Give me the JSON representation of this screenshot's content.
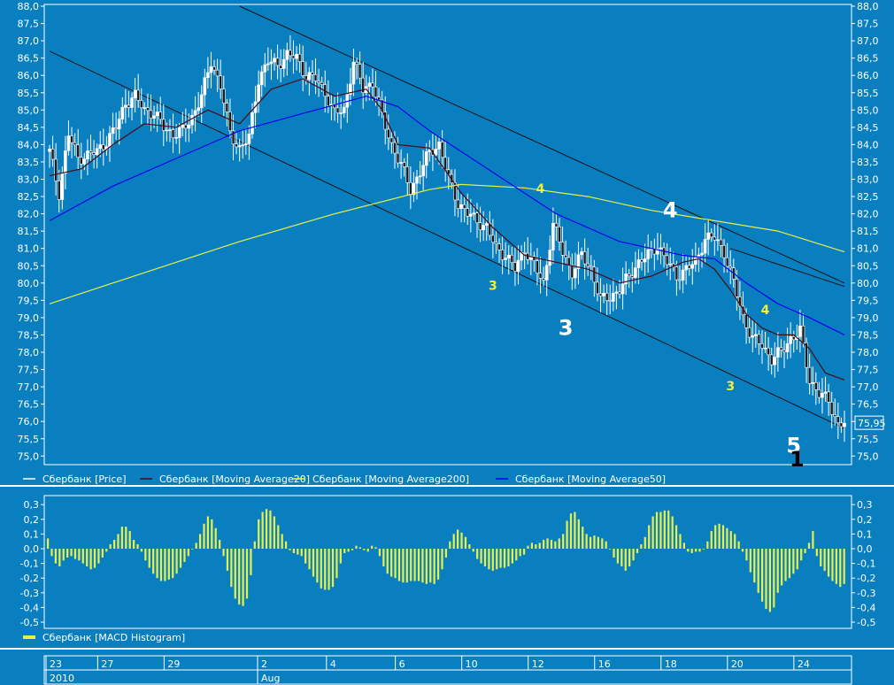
{
  "colors": {
    "background": "#0a7fbf",
    "frame": "#ffffff",
    "axis_text": "#ffffff",
    "candle": "#ffffff",
    "ma20": "#4a0a14",
    "ma50": "#0000ee",
    "ma200": "#e8f04a",
    "macd_hist": "#e8f04a",
    "trendline": "#101010",
    "annotation_yellow": "#f6f03a",
    "annotation_white": "#ffffff",
    "annotation_black": "#000000"
  },
  "chart_data": [
    {
      "type": "candlestick",
      "ylim": [
        74.6,
        88.0
      ],
      "yticks": [
        "88,0",
        "87,5",
        "87,0",
        "86,5",
        "86,0",
        "85,5",
        "85,0",
        "84,5",
        "84,0",
        "83,5",
        "83,0",
        "82,5",
        "82,0",
        "81,5",
        "81,0",
        "80,5",
        "80,0",
        "79,5",
        "79,0",
        "78,5",
        "78,0",
        "77,5",
        "77,0",
        "76,5",
        "76,0",
        "75,5",
        "75,0"
      ],
      "last_price_label": "75,95",
      "last_price": 75.95,
      "close_path": [
        [
          0,
          83.8
        ],
        [
          3,
          82.6
        ],
        [
          6,
          84.3
        ],
        [
          9,
          83.6
        ],
        [
          12,
          83.7
        ],
        [
          15,
          83.8
        ],
        [
          18,
          84.1
        ],
        [
          21,
          84.5
        ],
        [
          24,
          85.2
        ],
        [
          27,
          85.4
        ],
        [
          30,
          85.0
        ],
        [
          33,
          84.9
        ],
        [
          36,
          84.5
        ],
        [
          39,
          84.3
        ],
        [
          42,
          84.4
        ],
        [
          45,
          84.8
        ],
        [
          48,
          85.4
        ],
        [
          51,
          86.4
        ],
        [
          54,
          85.7
        ],
        [
          57,
          84.3
        ],
        [
          60,
          83.9
        ],
        [
          63,
          84.2
        ],
        [
          66,
          85.9
        ],
        [
          69,
          86.4
        ],
        [
          72,
          86.3
        ],
        [
          75,
          86.6
        ],
        [
          78,
          86.5
        ],
        [
          81,
          86.0
        ],
        [
          84,
          85.9
        ],
        [
          87,
          85.5
        ],
        [
          90,
          84.9
        ],
        [
          93,
          85.0
        ],
        [
          96,
          86.4
        ],
        [
          99,
          85.6
        ],
        [
          102,
          85.8
        ],
        [
          105,
          84.8
        ],
        [
          108,
          84.0
        ],
        [
          111,
          83.4
        ],
        [
          114,
          82.7
        ],
        [
          117,
          83.2
        ],
        [
          120,
          83.8
        ],
        [
          123,
          84.0
        ],
        [
          126,
          83.0
        ],
        [
          129,
          82.3
        ],
        [
          132,
          82.0
        ],
        [
          135,
          81.8
        ],
        [
          138,
          81.6
        ],
        [
          141,
          81.0
        ],
        [
          144,
          80.8
        ],
        [
          147,
          80.4
        ],
        [
          150,
          81.0
        ],
        [
          153,
          80.5
        ],
        [
          156,
          80.0
        ],
        [
          159,
          81.7
        ],
        [
          162,
          80.9
        ],
        [
          165,
          80.3
        ],
        [
          168,
          80.8
        ],
        [
          171,
          80.4
        ],
        [
          174,
          79.5
        ],
        [
          177,
          79.6
        ],
        [
          180,
          79.8
        ],
        [
          183,
          80.2
        ],
        [
          186,
          80.6
        ],
        [
          189,
          80.8
        ],
        [
          192,
          81.1
        ],
        [
          195,
          80.6
        ],
        [
          198,
          80.2
        ],
        [
          201,
          80.4
        ],
        [
          204,
          80.6
        ],
        [
          207,
          81.3
        ],
        [
          210,
          81.3
        ],
        [
          213,
          80.9
        ],
        [
          216,
          80.0
        ],
        [
          219,
          79.0
        ],
        [
          222,
          78.4
        ],
        [
          225,
          78.2
        ],
        [
          228,
          77.8
        ],
        [
          231,
          78.0
        ],
        [
          234,
          78.4
        ],
        [
          237,
          78.6
        ],
        [
          240,
          77.2
        ],
        [
          243,
          76.8
        ],
        [
          246,
          76.6
        ],
        [
          249,
          75.9
        ],
        [
          251,
          75.95
        ]
      ],
      "series": [
        {
          "name": "Сбербанк [Moving Average20]",
          "values": [
            [
              0,
              83.1
            ],
            [
              10,
              83.3
            ],
            [
              20,
              84.0
            ],
            [
              30,
              84.6
            ],
            [
              40,
              84.5
            ],
            [
              50,
              85.0
            ],
            [
              55,
              84.8
            ],
            [
              60,
              84.6
            ],
            [
              70,
              85.6
            ],
            [
              80,
              85.9
            ],
            [
              90,
              85.4
            ],
            [
              100,
              85.6
            ],
            [
              105,
              85.0
            ],
            [
              110,
              84.0
            ],
            [
              120,
              83.9
            ],
            [
              130,
              82.6
            ],
            [
              140,
              81.6
            ],
            [
              150,
              80.8
            ],
            [
              160,
              80.6
            ],
            [
              170,
              80.4
            ],
            [
              180,
              80.0
            ],
            [
              190,
              80.2
            ],
            [
              200,
              80.6
            ],
            [
              205,
              80.7
            ],
            [
              210,
              80.4
            ],
            [
              215,
              79.8
            ],
            [
              220,
              79.1
            ],
            [
              225,
              78.7
            ],
            [
              230,
              78.5
            ],
            [
              235,
              78.5
            ],
            [
              240,
              78.1
            ],
            [
              245,
              77.4
            ],
            [
              251,
              77.2
            ]
          ]
        },
        {
          "name": "Сбербанк [Moving Average200]",
          "values": [
            [
              0,
              79.4
            ],
            [
              30,
              80.3
            ],
            [
              60,
              81.2
            ],
            [
              90,
              82.0
            ],
            [
              120,
              82.7
            ],
            [
              130,
              82.85
            ],
            [
              150,
              82.75
            ],
            [
              170,
              82.5
            ],
            [
              190,
              82.1
            ],
            [
              210,
              81.8
            ],
            [
              230,
              81.5
            ],
            [
              251,
              80.9
            ]
          ]
        },
        {
          "name": "Сбербанк [Moving Average50]",
          "values": [
            [
              0,
              81.8
            ],
            [
              20,
              82.8
            ],
            [
              40,
              83.6
            ],
            [
              60,
              84.4
            ],
            [
              80,
              84.9
            ],
            [
              100,
              85.4
            ],
            [
              110,
              85.1
            ],
            [
              120,
              84.4
            ],
            [
              140,
              83.2
            ],
            [
              160,
              82.0
            ],
            [
              180,
              81.2
            ],
            [
              200,
              80.8
            ],
            [
              210,
              80.7
            ],
            [
              220,
              80.0
            ],
            [
              230,
              79.4
            ],
            [
              240,
              79.0
            ],
            [
              251,
              78.5
            ]
          ]
        }
      ],
      "trendlines": [
        {
          "from": [
            0,
            86.7
          ],
          "to": [
            251,
            75.8
          ]
        },
        {
          "from": [
            60,
            88.0
          ],
          "to": [
            251,
            80.0
          ]
        },
        {
          "from": [
            215,
            81.0
          ],
          "to": [
            251,
            79.9
          ]
        }
      ],
      "legend": [
        {
          "label": "Сбербанк [Price]",
          "color": "#ffffff"
        },
        {
          "label": "Сбербанк [Moving Average20]",
          "color": "#4a0a14"
        },
        {
          "label": "Сбербанк [Moving Average200]",
          "color": "#e8f04a"
        },
        {
          "label": "Сбербанк [Moving Average50]",
          "color": "#0000ee"
        }
      ],
      "annotations": [
        {
          "text": "4",
          "x": 155,
          "y": 82.6,
          "color": "yellow",
          "size": "small"
        },
        {
          "text": "3",
          "x": 140,
          "y": 79.8,
          "color": "yellow",
          "size": "small"
        },
        {
          "text": "3",
          "x": 163,
          "y": 78.5,
          "color": "white",
          "size": "large"
        },
        {
          "text": "4",
          "x": 196,
          "y": 81.9,
          "color": "white",
          "size": "large"
        },
        {
          "text": "4",
          "x": 226,
          "y": 79.1,
          "color": "yellow",
          "size": "small"
        },
        {
          "text": "3",
          "x": 215,
          "y": 76.9,
          "color": "yellow",
          "size": "small"
        },
        {
          "text": "5",
          "x": 235,
          "y": 75.1,
          "color": "white",
          "size": "large"
        },
        {
          "text": "1",
          "x": 236,
          "y": 74.7,
          "color": "black",
          "size": "large"
        }
      ]
    },
    {
      "type": "bar",
      "ylim": [
        -0.52,
        0.35
      ],
      "yticks": [
        "0,3",
        "0,2",
        "0,1",
        "0,0",
        "-0,1",
        "-0,2",
        "-0,3",
        "-0,4",
        "-0,5"
      ],
      "legend": [
        {
          "label": "Сбербанк [MACD Histogram]",
          "color": "#e8f04a"
        }
      ],
      "values": [
        0.07,
        -0.05,
        -0.1,
        -0.12,
        -0.08,
        -0.06,
        -0.05,
        -0.07,
        -0.08,
        -0.1,
        -0.12,
        -0.14,
        -0.13,
        -0.1,
        -0.06,
        -0.02,
        0.03,
        0.06,
        0.1,
        0.15,
        0.15,
        0.12,
        0.06,
        0.03,
        -0.02,
        -0.08,
        -0.13,
        -0.17,
        -0.2,
        -0.22,
        -0.22,
        -0.21,
        -0.2,
        -0.17,
        -0.13,
        -0.09,
        -0.05,
        0.0,
        0.04,
        0.1,
        0.17,
        0.22,
        0.2,
        0.14,
        0.06,
        -0.05,
        -0.15,
        -0.26,
        -0.34,
        -0.38,
        -0.39,
        -0.34,
        -0.18,
        0.05,
        0.2,
        0.25,
        0.27,
        0.26,
        0.22,
        0.16,
        0.1,
        0.05,
        -0.01,
        -0.03,
        -0.04,
        -0.05,
        -0.1,
        -0.14,
        -0.19,
        -0.23,
        -0.27,
        -0.28,
        -0.28,
        -0.26,
        -0.2,
        -0.1,
        -0.03,
        -0.02,
        -0.01,
        0.02,
        0.01,
        -0.01,
        -0.02,
        0.02,
        0.01,
        -0.05,
        -0.12,
        -0.17,
        -0.19,
        -0.2,
        -0.22,
        -0.23,
        -0.23,
        -0.22,
        -0.22,
        -0.22,
        -0.23,
        -0.24,
        -0.23,
        -0.24,
        -0.21,
        -0.14,
        -0.06,
        0.05,
        0.1,
        0.13,
        0.11,
        0.08,
        0.03,
        -0.02,
        -0.07,
        -0.1,
        -0.12,
        -0.14,
        -0.15,
        -0.14,
        -0.13,
        -0.13,
        -0.12,
        -0.1,
        -0.08,
        -0.05,
        -0.04,
        0.02,
        0.04,
        0.03,
        0.04,
        0.06,
        0.07,
        0.06,
        0.05,
        0.07,
        0.1,
        0.19,
        0.24,
        0.25,
        0.2,
        0.15,
        0.1,
        0.08,
        0.09,
        0.08,
        0.07,
        0.05,
        0.0,
        -0.06,
        -0.1,
        -0.12,
        -0.15,
        -0.12,
        -0.08,
        -0.03,
        0.03,
        0.08,
        0.16,
        0.22,
        0.25,
        0.25,
        0.26,
        0.26,
        0.22,
        0.16,
        0.1,
        0.04,
        -0.02,
        -0.03,
        -0.02,
        -0.02,
        0.0,
        0.05,
        0.12,
        0.16,
        0.17,
        0.16,
        0.14,
        0.12,
        0.1,
        0.05,
        -0.02,
        -0.08,
        -0.16,
        -0.23,
        -0.3,
        -0.36,
        -0.41,
        -0.43,
        -0.4,
        -0.3,
        -0.25,
        -0.22,
        -0.2,
        -0.17,
        -0.14,
        -0.08,
        -0.03,
        0.04,
        0.12,
        -0.05,
        -0.12,
        -0.15,
        -0.19,
        -0.22,
        -0.24,
        -0.26,
        -0.24
      ]
    }
  ],
  "x_axis": {
    "days": [
      {
        "label": "23",
        "x": 0
      },
      {
        "label": "27",
        "x": 21
      },
      {
        "label": "29",
        "x": 48
      },
      {
        "label": "2",
        "x": 86
      },
      {
        "label": "4",
        "x": 114
      },
      {
        "label": "6",
        "x": 142
      },
      {
        "label": "10",
        "x": 169
      },
      {
        "label": "12",
        "x": 196
      },
      {
        "label": "16",
        "x": 223
      },
      {
        "label": "18",
        "x": 250
      },
      {
        "label": "20",
        "x": 277
      },
      {
        "label": "24",
        "x": 304
      }
    ],
    "periods": [
      {
        "label": "2010",
        "x": 0
      },
      {
        "label": "Aug",
        "x": 86
      }
    ]
  }
}
